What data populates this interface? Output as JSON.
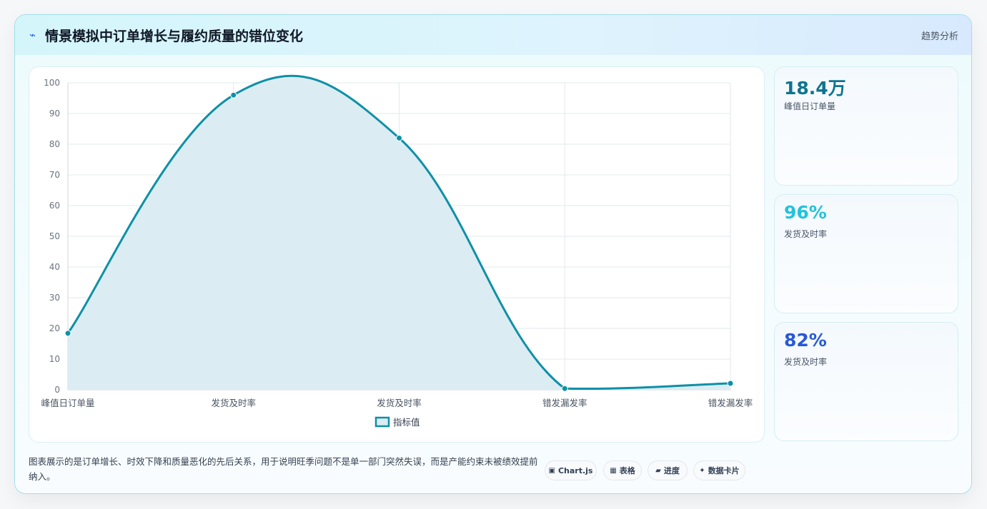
{
  "header": {
    "icon": "sparkline-icon",
    "title": "情景模拟中订单增长与履约质量的错位变化",
    "right_label": "趋势分析"
  },
  "chart_data": {
    "type": "line",
    "filled": true,
    "curve": "smooth",
    "categories": [
      "峰值日订单量",
      "发货及时率",
      "发货及时率",
      "错发漏发率",
      "错发漏发率"
    ],
    "series": [
      {
        "name": "指标值",
        "values": [
          18.4,
          96,
          82,
          0.4,
          2.1
        ],
        "color": "#0e90a8",
        "fill": "#dcecf3"
      }
    ],
    "ylim": [
      0,
      100
    ],
    "yticks": [
      0,
      10,
      20,
      30,
      40,
      50,
      60,
      70,
      80,
      90,
      100
    ],
    "grid": true,
    "legend": "bottom",
    "title": "",
    "xlabel": "",
    "ylabel": ""
  },
  "stats": [
    {
      "value": "18.4万",
      "label": "峰值日订单量",
      "color": "#0e7490"
    },
    {
      "value": "96%",
      "label": "发货及时率",
      "color": "#22c3dc"
    },
    {
      "value": "82%",
      "label": "发货及时率",
      "color": "#2958d8"
    }
  ],
  "footer": {
    "note": "图表展示的是订单增长、时效下降和质量恶化的先后关系，用于说明旺季问题不是单一部门突然失误，而是产能约束未被绩效提前纳入。",
    "chips": [
      {
        "icon": "image-icon",
        "glyph": "▣",
        "label": "Chart.js"
      },
      {
        "icon": "table-icon",
        "glyph": "▦",
        "label": "表格"
      },
      {
        "icon": "folder-icon",
        "glyph": "▰",
        "label": "进度"
      },
      {
        "icon": "sparkle-icon",
        "glyph": "✦",
        "label": "数据卡片"
      }
    ]
  }
}
